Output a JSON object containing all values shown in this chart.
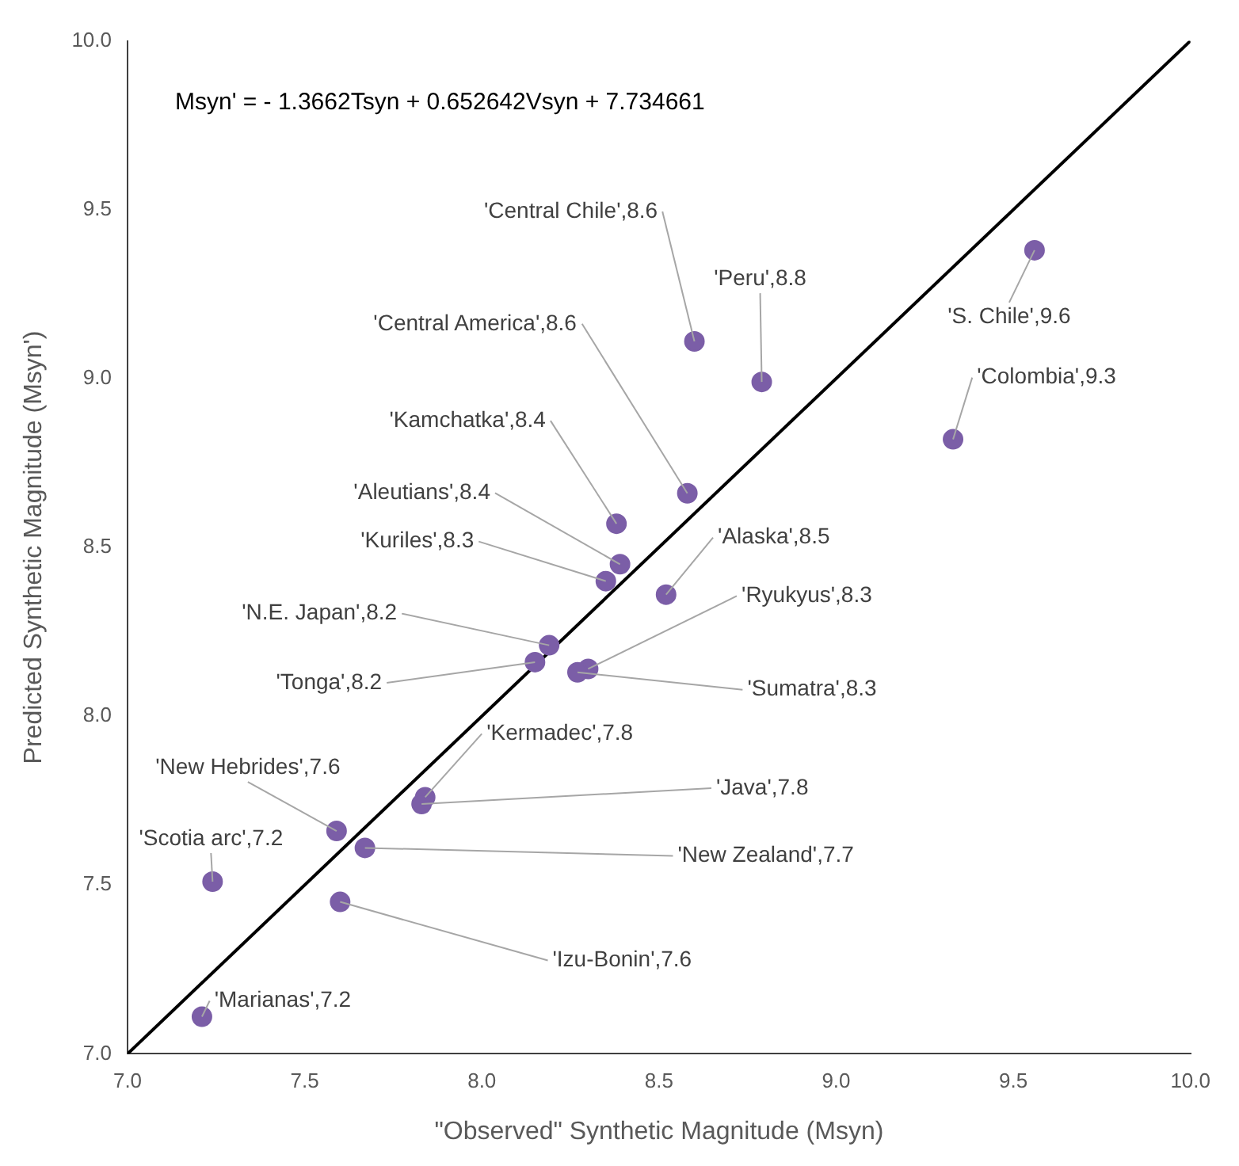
{
  "chart_data": {
    "type": "scatter",
    "xlabel": "\"Observed\" Synthetic Magnitude (Msyn)",
    "ylabel": "Predicted Synthetic Magnitude (Msyn')",
    "xlim": [
      7.0,
      10.0
    ],
    "xticks": [
      {
        "value": 7,
        "label": "7.0"
      },
      {
        "value": 7.5,
        "label": "7.5"
      },
      {
        "value": 8,
        "label": "8.0"
      },
      {
        "value": 8.5,
        "label": "8.5"
      },
      {
        "value": 9,
        "label": "9.0"
      },
      {
        "value": 9.5,
        "label": "9.5"
      },
      {
        "value": 10,
        "label": "10.0"
      }
    ],
    "ylim": [
      7.0,
      10.0
    ],
    "yticks": [
      {
        "value": 7,
        "label": "7.0"
      },
      {
        "value": 7.5,
        "label": "7.5"
      },
      {
        "value": 8,
        "label": "8.0"
      },
      {
        "value": 8.5,
        "label": "8.5"
      },
      {
        "value": 9,
        "label": "9.0"
      },
      {
        "value": 9.5,
        "label": "9.5"
      },
      {
        "value": 10,
        "label": "10.0"
      }
    ],
    "grid": false,
    "legend": false,
    "marker": "circle",
    "series": [
      {
        "type": "scatter",
        "color": "#7b5ea7",
        "x": [
          8.6,
          8.79,
          9.56,
          9.33,
          8.58,
          8.38,
          8.39,
          8.35,
          8.52,
          8.19,
          8.15,
          8.3,
          8.27,
          7.84,
          7.83,
          7.59,
          7.67,
          7.24,
          7.6,
          7.21
        ],
        "values": [
          9.11,
          8.99,
          9.38,
          8.82,
          8.66,
          8.57,
          8.45,
          8.4,
          8.36,
          8.21,
          8.16,
          8.14,
          8.13,
          7.76,
          7.74,
          7.66,
          7.61,
          7.51,
          7.45,
          7.11
        ]
      },
      {
        "type": "line",
        "color": "#000000",
        "line_style": "solid",
        "marker": "none",
        "x": [
          7.0,
          10.0
        ],
        "values": [
          7.0,
          10.0
        ]
      }
    ],
    "annotations": [
      "Msyn' = - 1.3662Tsyn + 0.652642Vsyn + 7.734661",
      {
        "text": "'Central Chile',8.6",
        "x": 8.6,
        "y": 9.11
      },
      {
        "text": "'Peru',8.8",
        "x": 8.79,
        "y": 8.99
      },
      {
        "text": "'S. Chile',9.6",
        "x": 9.56,
        "y": 9.38
      },
      {
        "text": "'Colombia',9.3",
        "x": 9.33,
        "y": 8.82
      },
      {
        "text": "'Central America',8.6",
        "x": 8.58,
        "y": 8.66
      },
      {
        "text": "'Kamchatka',8.4",
        "x": 8.38,
        "y": 8.57
      },
      {
        "text": "'Aleutians',8.4",
        "x": 8.39,
        "y": 8.45
      },
      {
        "text": "'Kuriles',8.3",
        "x": 8.35,
        "y": 8.4
      },
      {
        "text": "'Alaska',8.5",
        "x": 8.52,
        "y": 8.36
      },
      {
        "text": "'N.E. Japan',8.2",
        "x": 8.19,
        "y": 8.21
      },
      {
        "text": "'Tonga',8.2",
        "x": 8.15,
        "y": 8.16
      },
      {
        "text": "'Ryukyus',8.3",
        "x": 8.3,
        "y": 8.14
      },
      {
        "text": "'Sumatra',8.3",
        "x": 8.27,
        "y": 8.13
      },
      {
        "text": "'Kermadec',7.8",
        "x": 7.84,
        "y": 7.76
      },
      {
        "text": "'Java',7.8",
        "x": 7.83,
        "y": 7.74
      },
      {
        "text": "'New Hebrides',7.6",
        "x": 7.59,
        "y": 7.66
      },
      {
        "text": "'New Zealand',7.7",
        "x": 7.67,
        "y": 7.61
      },
      {
        "text": "'Scotia arc',7.2",
        "x": 7.24,
        "y": 7.51
      },
      {
        "text": "'Izu-Bonin',7.6",
        "x": 7.6,
        "y": 7.45
      },
      {
        "text": "'Marianas',7.2",
        "x": 7.21,
        "y": 7.11
      }
    ]
  }
}
